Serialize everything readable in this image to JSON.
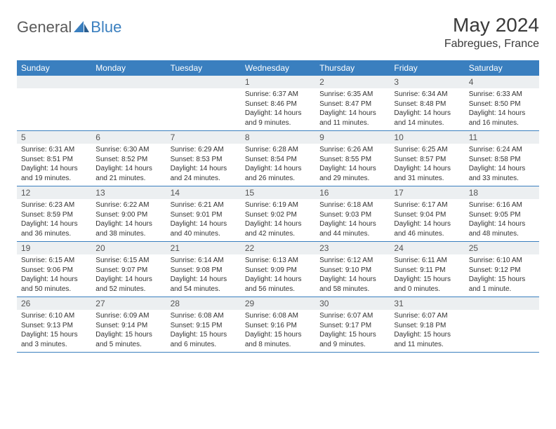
{
  "brand": {
    "general": "General",
    "blue": "Blue"
  },
  "title": "May 2024",
  "location": "Fabregues, France",
  "weekdays": [
    "Sunday",
    "Monday",
    "Tuesday",
    "Wednesday",
    "Thursday",
    "Friday",
    "Saturday"
  ],
  "colors": {
    "header_bar": "#3a7fbf",
    "day_number_bg": "#eceff1",
    "text": "#333333",
    "logo_gray": "#5a5a5a",
    "logo_blue": "#3a7fbf",
    "row_border": "#3a7fbf"
  },
  "weeks": [
    [
      {
        "n": "",
        "sunrise": "",
        "sunset": "",
        "daylight1": "",
        "daylight2": ""
      },
      {
        "n": "",
        "sunrise": "",
        "sunset": "",
        "daylight1": "",
        "daylight2": ""
      },
      {
        "n": "",
        "sunrise": "",
        "sunset": "",
        "daylight1": "",
        "daylight2": ""
      },
      {
        "n": "1",
        "sunrise": "Sunrise: 6:37 AM",
        "sunset": "Sunset: 8:46 PM",
        "daylight1": "Daylight: 14 hours",
        "daylight2": "and 9 minutes."
      },
      {
        "n": "2",
        "sunrise": "Sunrise: 6:35 AM",
        "sunset": "Sunset: 8:47 PM",
        "daylight1": "Daylight: 14 hours",
        "daylight2": "and 11 minutes."
      },
      {
        "n": "3",
        "sunrise": "Sunrise: 6:34 AM",
        "sunset": "Sunset: 8:48 PM",
        "daylight1": "Daylight: 14 hours",
        "daylight2": "and 14 minutes."
      },
      {
        "n": "4",
        "sunrise": "Sunrise: 6:33 AM",
        "sunset": "Sunset: 8:50 PM",
        "daylight1": "Daylight: 14 hours",
        "daylight2": "and 16 minutes."
      }
    ],
    [
      {
        "n": "5",
        "sunrise": "Sunrise: 6:31 AM",
        "sunset": "Sunset: 8:51 PM",
        "daylight1": "Daylight: 14 hours",
        "daylight2": "and 19 minutes."
      },
      {
        "n": "6",
        "sunrise": "Sunrise: 6:30 AM",
        "sunset": "Sunset: 8:52 PM",
        "daylight1": "Daylight: 14 hours",
        "daylight2": "and 21 minutes."
      },
      {
        "n": "7",
        "sunrise": "Sunrise: 6:29 AM",
        "sunset": "Sunset: 8:53 PM",
        "daylight1": "Daylight: 14 hours",
        "daylight2": "and 24 minutes."
      },
      {
        "n": "8",
        "sunrise": "Sunrise: 6:28 AM",
        "sunset": "Sunset: 8:54 PM",
        "daylight1": "Daylight: 14 hours",
        "daylight2": "and 26 minutes."
      },
      {
        "n": "9",
        "sunrise": "Sunrise: 6:26 AM",
        "sunset": "Sunset: 8:55 PM",
        "daylight1": "Daylight: 14 hours",
        "daylight2": "and 29 minutes."
      },
      {
        "n": "10",
        "sunrise": "Sunrise: 6:25 AM",
        "sunset": "Sunset: 8:57 PM",
        "daylight1": "Daylight: 14 hours",
        "daylight2": "and 31 minutes."
      },
      {
        "n": "11",
        "sunrise": "Sunrise: 6:24 AM",
        "sunset": "Sunset: 8:58 PM",
        "daylight1": "Daylight: 14 hours",
        "daylight2": "and 33 minutes."
      }
    ],
    [
      {
        "n": "12",
        "sunrise": "Sunrise: 6:23 AM",
        "sunset": "Sunset: 8:59 PM",
        "daylight1": "Daylight: 14 hours",
        "daylight2": "and 36 minutes."
      },
      {
        "n": "13",
        "sunrise": "Sunrise: 6:22 AM",
        "sunset": "Sunset: 9:00 PM",
        "daylight1": "Daylight: 14 hours",
        "daylight2": "and 38 minutes."
      },
      {
        "n": "14",
        "sunrise": "Sunrise: 6:21 AM",
        "sunset": "Sunset: 9:01 PM",
        "daylight1": "Daylight: 14 hours",
        "daylight2": "and 40 minutes."
      },
      {
        "n": "15",
        "sunrise": "Sunrise: 6:19 AM",
        "sunset": "Sunset: 9:02 PM",
        "daylight1": "Daylight: 14 hours",
        "daylight2": "and 42 minutes."
      },
      {
        "n": "16",
        "sunrise": "Sunrise: 6:18 AM",
        "sunset": "Sunset: 9:03 PM",
        "daylight1": "Daylight: 14 hours",
        "daylight2": "and 44 minutes."
      },
      {
        "n": "17",
        "sunrise": "Sunrise: 6:17 AM",
        "sunset": "Sunset: 9:04 PM",
        "daylight1": "Daylight: 14 hours",
        "daylight2": "and 46 minutes."
      },
      {
        "n": "18",
        "sunrise": "Sunrise: 6:16 AM",
        "sunset": "Sunset: 9:05 PM",
        "daylight1": "Daylight: 14 hours",
        "daylight2": "and 48 minutes."
      }
    ],
    [
      {
        "n": "19",
        "sunrise": "Sunrise: 6:15 AM",
        "sunset": "Sunset: 9:06 PM",
        "daylight1": "Daylight: 14 hours",
        "daylight2": "and 50 minutes."
      },
      {
        "n": "20",
        "sunrise": "Sunrise: 6:15 AM",
        "sunset": "Sunset: 9:07 PM",
        "daylight1": "Daylight: 14 hours",
        "daylight2": "and 52 minutes."
      },
      {
        "n": "21",
        "sunrise": "Sunrise: 6:14 AM",
        "sunset": "Sunset: 9:08 PM",
        "daylight1": "Daylight: 14 hours",
        "daylight2": "and 54 minutes."
      },
      {
        "n": "22",
        "sunrise": "Sunrise: 6:13 AM",
        "sunset": "Sunset: 9:09 PM",
        "daylight1": "Daylight: 14 hours",
        "daylight2": "and 56 minutes."
      },
      {
        "n": "23",
        "sunrise": "Sunrise: 6:12 AM",
        "sunset": "Sunset: 9:10 PM",
        "daylight1": "Daylight: 14 hours",
        "daylight2": "and 58 minutes."
      },
      {
        "n": "24",
        "sunrise": "Sunrise: 6:11 AM",
        "sunset": "Sunset: 9:11 PM",
        "daylight1": "Daylight: 15 hours",
        "daylight2": "and 0 minutes."
      },
      {
        "n": "25",
        "sunrise": "Sunrise: 6:10 AM",
        "sunset": "Sunset: 9:12 PM",
        "daylight1": "Daylight: 15 hours",
        "daylight2": "and 1 minute."
      }
    ],
    [
      {
        "n": "26",
        "sunrise": "Sunrise: 6:10 AM",
        "sunset": "Sunset: 9:13 PM",
        "daylight1": "Daylight: 15 hours",
        "daylight2": "and 3 minutes."
      },
      {
        "n": "27",
        "sunrise": "Sunrise: 6:09 AM",
        "sunset": "Sunset: 9:14 PM",
        "daylight1": "Daylight: 15 hours",
        "daylight2": "and 5 minutes."
      },
      {
        "n": "28",
        "sunrise": "Sunrise: 6:08 AM",
        "sunset": "Sunset: 9:15 PM",
        "daylight1": "Daylight: 15 hours",
        "daylight2": "and 6 minutes."
      },
      {
        "n": "29",
        "sunrise": "Sunrise: 6:08 AM",
        "sunset": "Sunset: 9:16 PM",
        "daylight1": "Daylight: 15 hours",
        "daylight2": "and 8 minutes."
      },
      {
        "n": "30",
        "sunrise": "Sunrise: 6:07 AM",
        "sunset": "Sunset: 9:17 PM",
        "daylight1": "Daylight: 15 hours",
        "daylight2": "and 9 minutes."
      },
      {
        "n": "31",
        "sunrise": "Sunrise: 6:07 AM",
        "sunset": "Sunset: 9:18 PM",
        "daylight1": "Daylight: 15 hours",
        "daylight2": "and 11 minutes."
      },
      {
        "n": "",
        "sunrise": "",
        "sunset": "",
        "daylight1": "",
        "daylight2": ""
      }
    ]
  ]
}
